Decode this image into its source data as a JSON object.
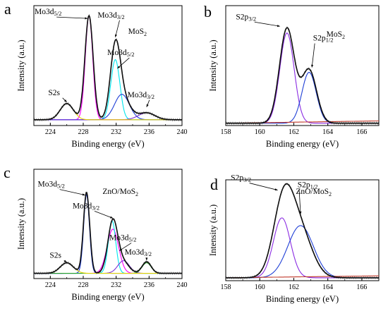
{
  "chart_data": [
    {
      "type": "line",
      "letter": "a",
      "sample": "MoS2",
      "xlabel": "Binding energy (eV)",
      "ylabel": "Intensity (a.u.)",
      "xlim": [
        222,
        240
      ],
      "xticks": [
        224,
        228,
        232,
        236,
        240
      ],
      "ylim": [
        0,
        1
      ],
      "baseline": 0.05,
      "peak_labels": [
        {
          "text": "Mo3d5/2",
          "x": 228.7
        },
        {
          "text": "Mo3d3/2",
          "x": 231.9
        },
        {
          "text": "Mo3d5/2",
          "x": 233.0
        },
        {
          "text": "Mo3d3/2",
          "x": 235.7
        },
        {
          "text": "S2s",
          "x": 226.0
        }
      ],
      "series": [
        {
          "role": "component",
          "color": "#ff00ff",
          "peaks": [
            {
              "center": 228.7,
              "height": 0.9,
              "width": 0.45
            }
          ]
        },
        {
          "role": "component",
          "color": "#00e5ee",
          "peaks": [
            {
              "center": 231.9,
              "height": 0.52,
              "width": 0.55
            }
          ]
        },
        {
          "role": "component",
          "color": "#1f3fd6",
          "peaks": [
            {
              "center": 232.7,
              "height": 0.22,
              "width": 0.9
            }
          ]
        },
        {
          "role": "component",
          "color": "#7b2fd6",
          "peaks": [
            {
              "center": 235.7,
              "height": 0.06,
              "width": 1.0
            }
          ]
        },
        {
          "role": "component",
          "color": "#e8d400",
          "peaks": [
            {
              "center": 226.0,
              "height": 0.14,
              "width": 0.8
            }
          ]
        },
        {
          "role": "envelope",
          "color": "#000000",
          "peaks": [
            {
              "center": 228.7,
              "height": 0.9,
              "width": 0.5
            },
            {
              "center": 231.9,
              "height": 0.58,
              "width": 0.6
            },
            {
              "center": 232.8,
              "height": 0.18,
              "width": 0.9
            },
            {
              "center": 235.7,
              "height": 0.06,
              "width": 1.0
            },
            {
              "center": 226.0,
              "height": 0.14,
              "width": 0.8
            }
          ]
        }
      ]
    },
    {
      "type": "line",
      "letter": "b",
      "sample": "MoS2",
      "xlabel": "Binding energy (eV)",
      "ylabel": "Intensity (a.u.)",
      "xlim": [
        158,
        167
      ],
      "xticks": [
        158,
        160,
        162,
        164,
        166
      ],
      "ylim": [
        0,
        1
      ],
      "baseline": 0.02,
      "peak_labels": [
        {
          "text": "S2p3/2",
          "x": 161.6
        },
        {
          "text": "S2p1/2",
          "x": 162.9
        }
      ],
      "series": [
        {
          "role": "component",
          "color": "#8a2be2",
          "peaks": [
            {
              "center": 161.6,
              "height": 0.78,
              "width": 0.42
            }
          ]
        },
        {
          "role": "component",
          "color": "#1f3fd6",
          "peaks": [
            {
              "center": 162.9,
              "height": 0.44,
              "width": 0.42
            }
          ]
        },
        {
          "role": "background",
          "color": "#c0392b",
          "peaks": []
        },
        {
          "role": "envelope",
          "color": "#000000",
          "peaks": [
            {
              "center": 161.6,
              "height": 0.82,
              "width": 0.44
            },
            {
              "center": 162.9,
              "height": 0.46,
              "width": 0.44
            }
          ]
        }
      ]
    },
    {
      "type": "line",
      "letter": "c",
      "sample": "ZnO/MoS2",
      "xlabel": "Binding energy (eV)",
      "ylabel": "Intensity (a.u.)",
      "xlim": [
        222,
        240
      ],
      "xticks": [
        224,
        228,
        232,
        236,
        240
      ],
      "ylim": [
        0,
        1
      ],
      "baseline": 0.05,
      "peak_labels": [
        {
          "text": "Mo3d5/2",
          "x": 228.4
        },
        {
          "text": "Mo3d3/2",
          "x": 231.6
        },
        {
          "text": "Mo3d5/2",
          "x": 232.9
        },
        {
          "text": "Mo3d3/2",
          "x": 235.7
        },
        {
          "text": "S2s",
          "x": 226.0
        }
      ],
      "series": [
        {
          "role": "component",
          "color": "#ff00ff",
          "peaks": [
            {
              "center": 231.6,
              "height": 0.42,
              "width": 0.7
            }
          ]
        },
        {
          "role": "component",
          "color": "#1f3fd6",
          "peaks": [
            {
              "center": 228.4,
              "height": 0.75,
              "width": 0.35
            }
          ]
        },
        {
          "role": "component",
          "color": "#00e5ee",
          "peaks": [
            {
              "center": 231.5,
              "height": 0.5,
              "width": 0.45
            }
          ]
        },
        {
          "role": "component",
          "color": "#7b2fd6",
          "peaks": [
            {
              "center": 232.9,
              "height": 0.12,
              "width": 0.7
            }
          ]
        },
        {
          "role": "component",
          "color": "#2aa52a",
          "peaks": [
            {
              "center": 235.7,
              "height": 0.1,
              "width": 0.55
            }
          ]
        },
        {
          "role": "component",
          "color": "#e8d400",
          "peaks": [
            {
              "center": 226.0,
              "height": 0.1,
              "width": 0.8
            }
          ]
        },
        {
          "role": "envelope",
          "color": "#000000",
          "peaks": [
            {
              "center": 228.4,
              "height": 0.77,
              "width": 0.38
            },
            {
              "center": 231.6,
              "height": 0.5,
              "width": 0.6
            },
            {
              "center": 232.9,
              "height": 0.1,
              "width": 0.7
            },
            {
              "center": 235.7,
              "height": 0.11,
              "width": 0.55
            },
            {
              "center": 226.0,
              "height": 0.1,
              "width": 0.8
            }
          ]
        }
      ]
    },
    {
      "type": "line",
      "letter": "d",
      "sample": "ZnO/MoS2",
      "xlabel": "Binding energy (eV)",
      "ylabel": "Intensity (a.u.)",
      "xlim": [
        158,
        167
      ],
      "xticks": [
        158,
        160,
        162,
        164,
        166
      ],
      "ylim": [
        0,
        1
      ],
      "baseline": 0.03,
      "peak_labels": [
        {
          "text": "S2p3/2",
          "x": 161.3
        },
        {
          "text": "S2p1/2",
          "x": 162.4
        }
      ],
      "series": [
        {
          "role": "component",
          "color": "#8a2be2",
          "peaks": [
            {
              "center": 161.3,
              "height": 0.62,
              "width": 0.5
            }
          ]
        },
        {
          "role": "component",
          "color": "#1f3fd6",
          "peaks": [
            {
              "center": 162.4,
              "height": 0.54,
              "width": 0.75
            }
          ]
        },
        {
          "role": "background",
          "color": "#c0392b",
          "peaks": []
        },
        {
          "role": "envelope",
          "color": "#000000",
          "peaks": [
            {
              "center": 161.4,
              "height": 0.78,
              "width": 0.6
            },
            {
              "center": 162.4,
              "height": 0.45,
              "width": 0.7
            }
          ]
        }
      ]
    }
  ]
}
